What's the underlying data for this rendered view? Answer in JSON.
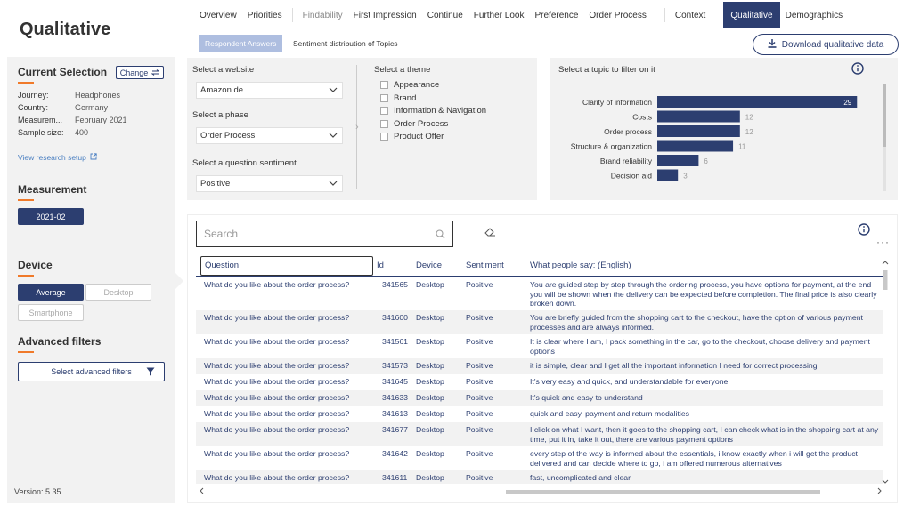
{
  "app": {
    "title": "Qualitative",
    "version": "Version: 5.35"
  },
  "nav": {
    "items": [
      {
        "label": "Overview"
      },
      {
        "label": "Priorities"
      },
      {
        "label": "Findability"
      },
      {
        "label": "First Impression"
      },
      {
        "label": "Continue"
      },
      {
        "label": "Further Look"
      },
      {
        "label": "Preference"
      },
      {
        "label": "Order Process"
      },
      {
        "label": "Context"
      },
      {
        "label": "Qualitative"
      },
      {
        "label": "Demographics"
      }
    ],
    "active": "Qualitative"
  },
  "subtabs": {
    "active": "Respondent Answers",
    "other": "Sentiment distribution of Topics"
  },
  "download": {
    "label": "Download qualitative data"
  },
  "sidebar": {
    "current_selection": {
      "title": "Current Selection",
      "change_label": "Change",
      "rows": [
        {
          "key": "Journey:",
          "value": "Headphones"
        },
        {
          "key": "Country:",
          "value": "Germany"
        },
        {
          "key": "Measurem...",
          "value": "February 2021"
        },
        {
          "key": "Sample size:",
          "value": "400"
        }
      ],
      "link": "View research setup"
    },
    "measurement": {
      "title": "Measurement",
      "value": "2021-02"
    },
    "device": {
      "title": "Device",
      "options": [
        "Average",
        "Desktop",
        "Smartphone"
      ],
      "selected": "Average"
    },
    "advanced": {
      "title": "Advanced filters",
      "button": "Select advanced filters"
    }
  },
  "filters": {
    "website_label": "Select a website",
    "website_value": "Amazon.de",
    "phase_label": "Select a phase",
    "phase_value": "Order Process",
    "sentiment_label": "Select a question sentiment",
    "sentiment_value": "Positive",
    "theme_label": "Select a theme",
    "themes": [
      "Appearance",
      "Brand",
      "Information & Navigation",
      "Order Process",
      "Product Offer"
    ]
  },
  "topics": {
    "title": "Select a topic to filter on it",
    "accent": "#2c3e70"
  },
  "chart_data": {
    "type": "bar",
    "orientation": "horizontal",
    "categories": [
      "Clarity of information",
      "Costs",
      "Order process",
      "Structure & organization",
      "Brand reliability",
      "Decision aid"
    ],
    "values": [
      29,
      12,
      12,
      11,
      6,
      3
    ],
    "xlim": [
      0,
      30
    ]
  },
  "table": {
    "search_placeholder": "Search",
    "headers": {
      "question": "Question",
      "id": "Id",
      "device": "Device",
      "sentiment": "Sentiment",
      "say": "What people say: (English)"
    },
    "rows": [
      {
        "q": "What do you like about the order process?",
        "id": "341565",
        "device": "Desktop",
        "sentiment": "Positive",
        "say": "You are guided step by step through the ordering process, you have options for payment, at the end you will be shown when the delivery can be expected before completion. The final price is also clearly broken down."
      },
      {
        "q": "What do you like about the order process?",
        "id": "341600",
        "device": "Desktop",
        "sentiment": "Positive",
        "say": "You are briefly guided from the shopping cart to the checkout, have the option of various payment processes and are always informed."
      },
      {
        "q": "What do you like about the order process?",
        "id": "341561",
        "device": "Desktop",
        "sentiment": "Positive",
        "say": "It is clear where I am, I pack something in the car, go to the checkout, choose delivery and payment options"
      },
      {
        "q": "What do you like about the order process?",
        "id": "341573",
        "device": "Desktop",
        "sentiment": "Positive",
        "say": "it is simple, clear and I get all the important information I need for correct processing"
      },
      {
        "q": "What do you like about the order process?",
        "id": "341645",
        "device": "Desktop",
        "sentiment": "Positive",
        "say": "It's very easy and quick, and understandable for everyone."
      },
      {
        "q": "What do you like about the order process?",
        "id": "341633",
        "device": "Desktop",
        "sentiment": "Positive",
        "say": "It's quick and easy to understand"
      },
      {
        "q": "What do you like about the order process?",
        "id": "341613",
        "device": "Desktop",
        "sentiment": "Positive",
        "say": "quick and easy, payment and return modalities"
      },
      {
        "q": "What do you like about the order process?",
        "id": "341677",
        "device": "Desktop",
        "sentiment": "Positive",
        "say": "I click on what I want, then it goes to the shopping cart, I can check what is in the shopping cart at any time, put it in, take it out, there are various payment options"
      },
      {
        "q": "What do you like about the order process?",
        "id": "341642",
        "device": "Desktop",
        "sentiment": "Positive",
        "say": "every step of the way is informed about the essentials, i know exactly when i will get the product delivered and can decide where to go, i am offered numerous alternatives"
      },
      {
        "q": "What do you like about the order process?",
        "id": "341611",
        "device": "Desktop",
        "sentiment": "Positive",
        "say": "fast, uncomplicated and clear"
      }
    ]
  }
}
